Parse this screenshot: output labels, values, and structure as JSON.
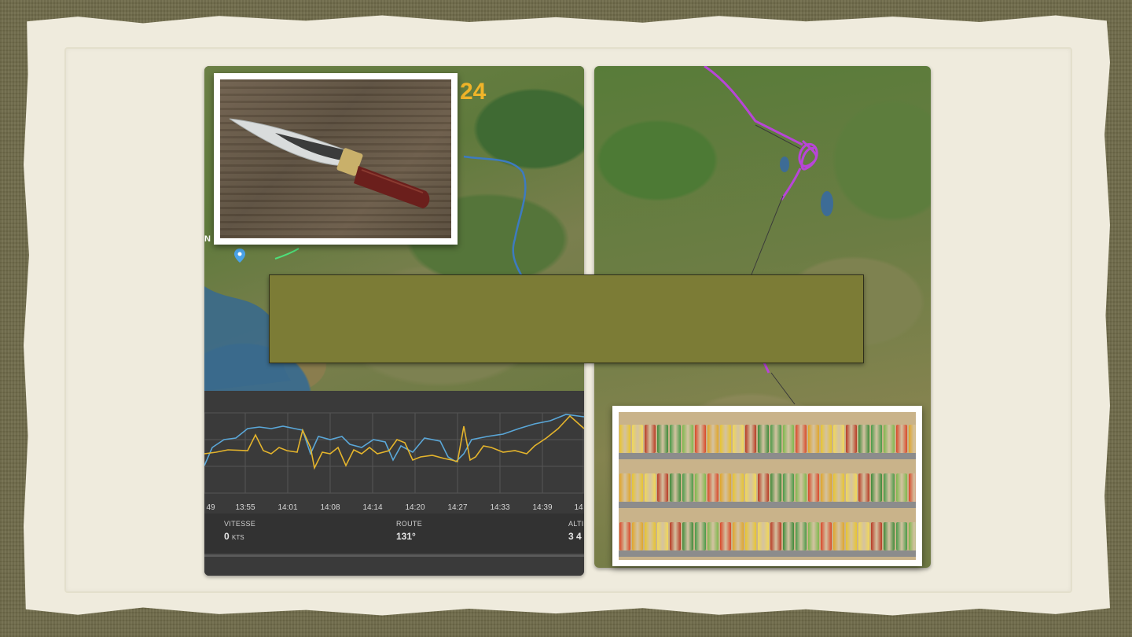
{
  "slide": {
    "title_box_text": ""
  },
  "left_screenshot": {
    "map_title": "24",
    "map_edge_label": "N",
    "chart": {
      "time_labels": [
        "49",
        "13:55",
        "14:01",
        "14:08",
        "14:14",
        "14:20",
        "14:27",
        "14:33",
        "14:39",
        "14"
      ],
      "series_colors": {
        "speed": "#5aa7d8",
        "route": "#e4b42c"
      }
    },
    "stats": [
      {
        "label": "VITESSE",
        "value": "0",
        "unit": "KTS"
      },
      {
        "label": "ROUTE",
        "value": "131°",
        "unit": ""
      },
      {
        "label": "ALTI",
        "value": "3 4",
        "unit": ""
      }
    ]
  },
  "photos": {
    "knife": "knife-photo",
    "cans": "canned-goods-photo"
  },
  "colors": {
    "background_linen": "#6f6b4a",
    "paper": "#efebdd",
    "title_box": "#7c7c36",
    "route_track": "#b845d8"
  }
}
